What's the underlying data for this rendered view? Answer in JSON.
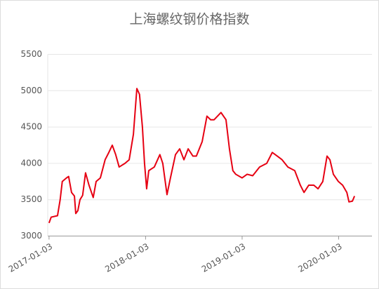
{
  "chart_data": {
    "type": "line",
    "title": "上海螺纹钢价格指数",
    "x": [
      "2017-01-03",
      "2017-01-11",
      "2017-02-04",
      "2017-02-14",
      "2017-02-22",
      "2017-03-10",
      "2017-03-18",
      "2017-03-29",
      "2017-04-09",
      "2017-04-14",
      "2017-04-22",
      "2017-04-30",
      "2017-05-10",
      "2017-05-21",
      "2017-06-03",
      "2017-06-19",
      "2017-06-30",
      "2017-07-16",
      "2017-08-03",
      "2017-08-17",
      "2017-08-30",
      "2017-09-12",
      "2017-09-25",
      "2017-10-17",
      "2017-11-02",
      "2017-11-18",
      "2017-12-01",
      "2017-12-11",
      "2017-12-22",
      "2017-12-30",
      "2018-01-07",
      "2018-01-15",
      "2018-02-05",
      "2018-02-26",
      "2018-03-09",
      "2018-03-25",
      "2018-04-07",
      "2018-04-26",
      "2018-05-12",
      "2018-05-28",
      "2018-06-13",
      "2018-07-01",
      "2018-07-14",
      "2018-08-05",
      "2018-08-23",
      "2018-09-06",
      "2018-09-19",
      "2018-10-15",
      "2018-11-03",
      "2018-11-16",
      "2018-11-29",
      "2018-12-10",
      "2019-01-03",
      "2019-01-22",
      "2019-02-12",
      "2019-03-10",
      "2019-04-06",
      "2019-04-27",
      "2019-05-16",
      "2019-06-03",
      "2019-06-25",
      "2019-07-21",
      "2019-08-11",
      "2019-08-25",
      "2019-09-12",
      "2019-10-01",
      "2019-10-17",
      "2019-11-04",
      "2019-11-20",
      "2019-12-01",
      "2019-12-14",
      "2020-01-02",
      "2020-01-18",
      "2020-02-03",
      "2020-02-11",
      "2020-02-24",
      "2020-03-03"
    ],
    "series": [
      {
        "color": "#e60012",
        "values": [
          3180,
          3260,
          3280,
          3500,
          3750,
          3800,
          3820,
          3600,
          3550,
          3310,
          3350,
          3500,
          3560,
          3870,
          3700,
          3530,
          3750,
          3800,
          4050,
          4150,
          4250,
          4120,
          3950,
          4000,
          4050,
          4400,
          5030,
          4950,
          4500,
          4000,
          3650,
          3900,
          3950,
          4120,
          4000,
          3570,
          3800,
          4120,
          4200,
          4050,
          4200,
          4100,
          4100,
          4300,
          4650,
          4600,
          4600,
          4700,
          4600,
          4200,
          3900,
          3850,
          3800,
          3850,
          3830,
          3950,
          4000,
          4150,
          4100,
          4050,
          3950,
          3900,
          3700,
          3600,
          3700,
          3700,
          3650,
          3750,
          4100,
          4050,
          3850,
          3750,
          3700,
          3600,
          3470,
          3480,
          3550
        ]
      }
    ],
    "xlim": [
      "2016-12-29",
      "2020-05-08"
    ],
    "xticks": [
      "2017-01-03",
      "2018-01-03",
      "2019-01-03",
      "2020-01-03"
    ],
    "ylim": [
      3000,
      5500
    ],
    "yticks": [
      3000,
      3500,
      4000,
      4500,
      5000,
      5500
    ],
    "grid": true
  }
}
